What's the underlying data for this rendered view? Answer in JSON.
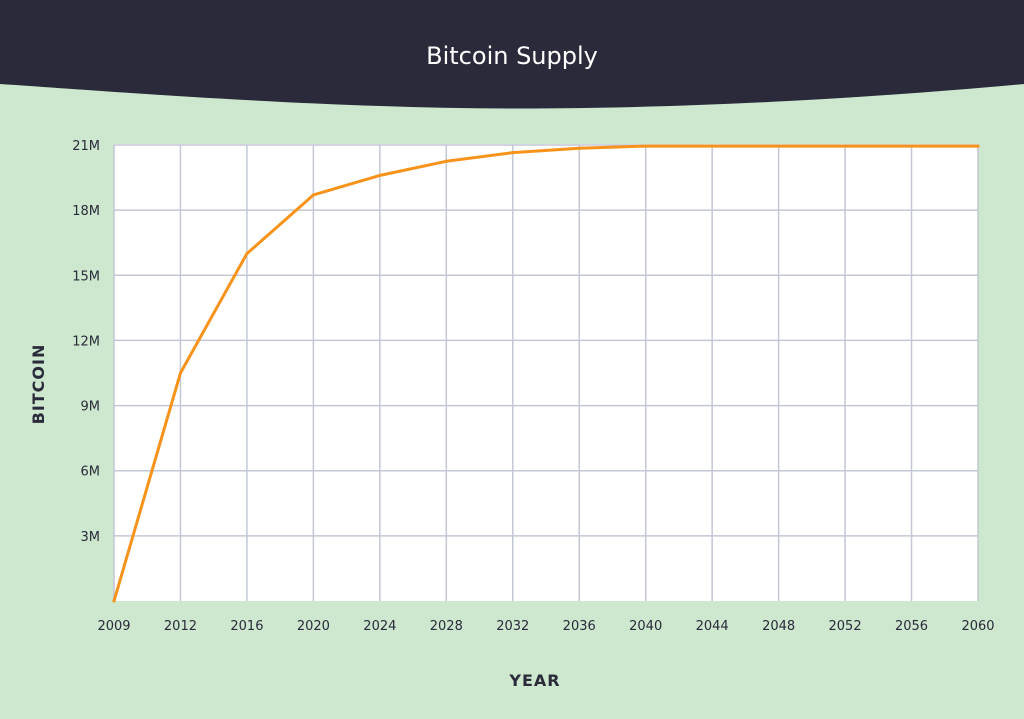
{
  "chart_data": {
    "type": "line",
    "title": "Bitcoin Supply",
    "xlabel": "YEAR",
    "ylabel": "BITCOIN",
    "x": [
      2009,
      2012,
      2016,
      2020,
      2024,
      2028,
      2032,
      2036,
      2040,
      2044,
      2048,
      2052,
      2056,
      2060
    ],
    "x_tick_labels": [
      "2009",
      "2012",
      "2016",
      "2020",
      "2024",
      "2028",
      "2032",
      "2036",
      "2040",
      "2044",
      "2048",
      "2052",
      "2056",
      "2060"
    ],
    "y_tick_values": [
      3000000,
      6000000,
      9000000,
      12000000,
      15000000,
      18000000,
      21000000
    ],
    "y_tick_labels": [
      "3M",
      "6M",
      "9M",
      "12M",
      "15M",
      "18M",
      "21M"
    ],
    "ylim": [
      0,
      21000000
    ],
    "grid": true,
    "series": [
      {
        "values": [
          0,
          10500000,
          16000000,
          18700000,
          19600000,
          20250000,
          20650000,
          20850000,
          20950000,
          20950000,
          20950000,
          20950000,
          20950000,
          20950000
        ]
      }
    ],
    "colors": {
      "line": "#f7931a",
      "grid": "#c3c7d6",
      "plot_background": "#ffffff",
      "header": "#2b2a3b",
      "page_background": "#cde8cf"
    }
  }
}
